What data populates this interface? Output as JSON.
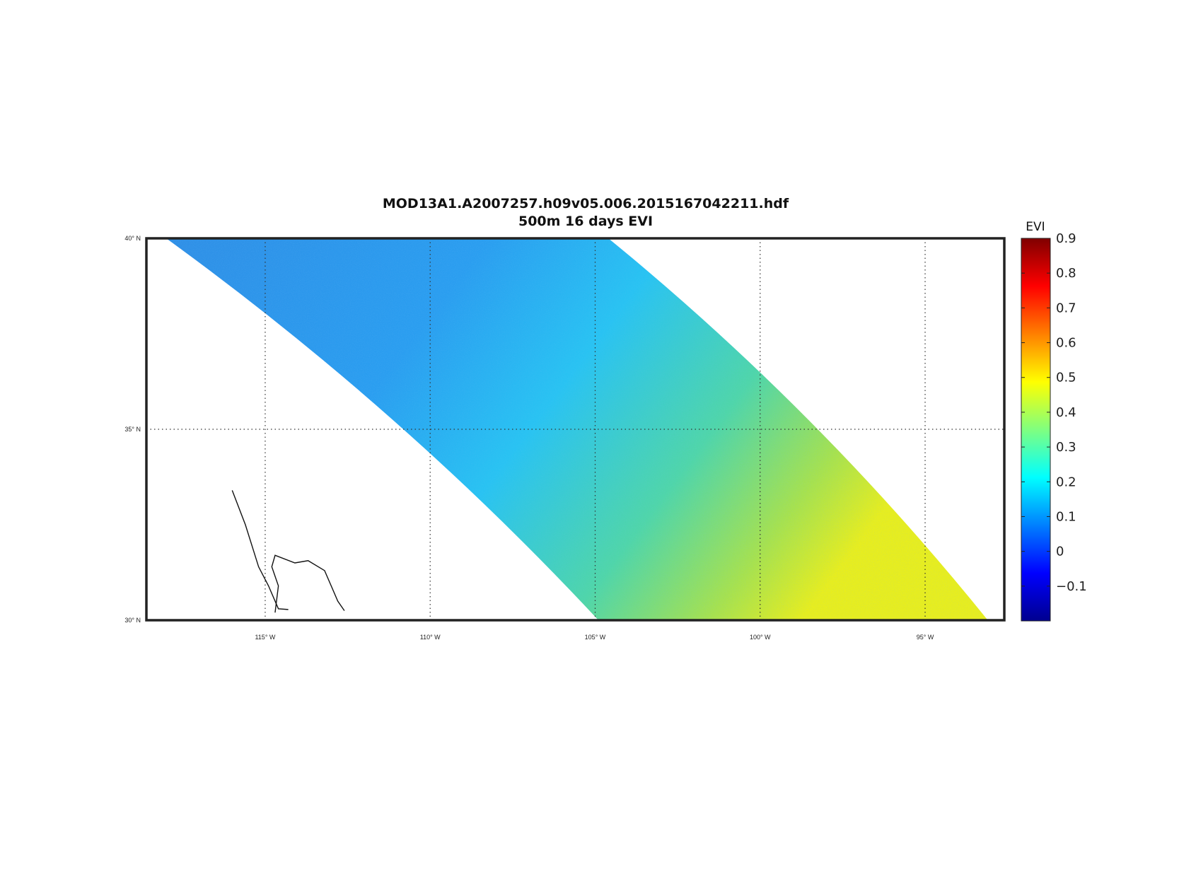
{
  "title_line1": "MOD13A1.A2007257.h09v05.006.2015167042211.hdf",
  "title_line2": "500m 16 days EVI",
  "colorbar_label": "EVI",
  "chart_data": {
    "type": "heatmap",
    "variable": "EVI",
    "projection": "latitude-longitude",
    "lon_range": [
      -118.6,
      -92.6
    ],
    "lat_range": [
      30,
      40
    ],
    "lon_ticks": [
      {
        "value": -115,
        "label": "115",
        "hemi": "W"
      },
      {
        "value": -110,
        "label": "110",
        "hemi": "W"
      },
      {
        "value": -105,
        "label": "105",
        "hemi": "W"
      },
      {
        "value": -100,
        "label": "100",
        "hemi": "W"
      },
      {
        "value": -95,
        "label": "95",
        "hemi": "W"
      }
    ],
    "lat_ticks": [
      {
        "value": 40,
        "label": "40",
        "hemi": "N"
      },
      {
        "value": 35,
        "label": "35",
        "hemi": "N"
      },
      {
        "value": 30,
        "label": "30",
        "hemi": "N"
      }
    ],
    "swath": {
      "top_west_lon": -118.0,
      "top_east_lon": -104.6,
      "bottom_west_lon": -104.9,
      "bottom_east_lon": -93.1
    },
    "colorbar": {
      "range": [
        -0.2,
        0.9
      ],
      "ticks": [
        -0.1,
        0,
        0.1,
        0.2,
        0.3,
        0.4,
        0.5,
        0.6,
        0.7,
        0.8,
        0.9
      ],
      "tick_labels": [
        "−0.1",
        "0",
        "0.1",
        "0.2",
        "0.3",
        "0.4",
        "0.5",
        "0.6",
        "0.7",
        "0.8",
        "0.9"
      ],
      "colormap": "jet"
    },
    "grid": "dotted",
    "coastlines": [
      [
        [
          -116.0,
          33.4
        ],
        [
          -115.6,
          32.5
        ],
        [
          -115.2,
          31.4
        ],
        [
          -114.9,
          30.9
        ],
        [
          -114.6,
          30.3
        ],
        [
          -114.3,
          30.28
        ]
      ],
      [
        [
          -114.7,
          30.2
        ],
        [
          -114.6,
          30.9
        ],
        [
          -114.8,
          31.4
        ],
        [
          -114.7,
          31.7
        ],
        [
          -114.1,
          31.5
        ],
        [
          -113.7,
          31.56
        ],
        [
          -113.2,
          31.3
        ],
        [
          -113.0,
          30.9
        ],
        [
          -112.8,
          30.5
        ],
        [
          -112.6,
          30.25
        ]
      ]
    ]
  }
}
